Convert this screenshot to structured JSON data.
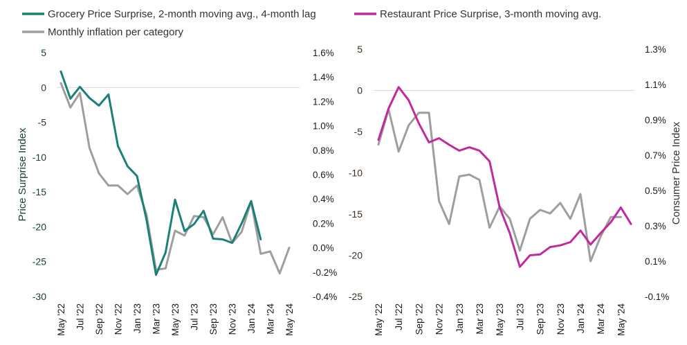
{
  "colors": {
    "grocery": "#1a8078",
    "restaurant": "#c02a9e",
    "inflation": "#9e9e9e",
    "left_axis_labels": "#17403c",
    "right_axis_labels": "#1a1a1a",
    "right_chart_left_axis_labels": "#3d2f1f",
    "zero_line": "#d9d9d9"
  },
  "legend": {
    "grocery": "Grocery Price Surprise, 2-month moving avg., 4-month lag",
    "inflation": "Monthly inflation per category",
    "restaurant": "Restaurant Price Surprise, 3-month moving avg."
  },
  "chart_data": [
    {
      "type": "line",
      "ylabel": "Price Surprise Index",
      "y2label": "",
      "ylim": [
        -30,
        5
      ],
      "y_ticks": [
        "5",
        "0",
        "-5",
        "-10",
        "-15",
        "-20",
        "-25",
        "-30"
      ],
      "y2lim": [
        -0.4,
        1.6
      ],
      "y2_ticks": [
        "1.6%",
        "1.4%",
        "1.2%",
        "1.0%",
        "0.8%",
        "0.6%",
        "0.4%",
        "0.2%",
        "0.0%",
        "-0.2%",
        "-0.4%"
      ],
      "x": [
        "May '22",
        "Jun '22",
        "Jul '22",
        "Aug '22",
        "Sep '22",
        "Oct '22",
        "Nov '22",
        "Dec '22",
        "Jan '23",
        "Feb '23",
        "Mar '23",
        "Apr '23",
        "May '23",
        "Jun '23",
        "Jul '23",
        "Aug '23",
        "Sep '23",
        "Oct '23",
        "Nov '23",
        "Dec '23",
        "Jan '24",
        "Feb '24",
        "Mar '24",
        "Apr '24",
        "May '24"
      ],
      "x_tick_labels": [
        "May '22",
        "Jul '22",
        "Sep '22",
        "Nov '22",
        "Jan '23",
        "Mar '23",
        "May '23",
        "Jul '23",
        "Sep '23",
        "Nov '23",
        "Jan '24",
        "Mar '24",
        "May '24"
      ],
      "series": [
        {
          "name": "Grocery Price Surprise, 2-month moving avg., 4-month lag",
          "axis": "left",
          "color_key": "grocery",
          "values": [
            2.3,
            -1.6,
            0.1,
            -1.5,
            -2.6,
            -1.0,
            -8.4,
            -11.3,
            -12.7,
            -19.0,
            -26.9,
            -23.7,
            -16.1,
            -20.6,
            -19.6,
            -17.7,
            -21.7,
            -21.8,
            -22.3,
            -19.5,
            -16.3,
            -21.8,
            null,
            null,
            null
          ]
        },
        {
          "name": "Monthly inflation per category",
          "axis": "right",
          "color_key": "inflation",
          "values": [
            1.35,
            1.15,
            1.27,
            0.82,
            0.61,
            0.51,
            0.51,
            0.44,
            0.51,
            0.27,
            -0.18,
            -0.17,
            0.14,
            0.1,
            0.26,
            0.25,
            0.11,
            0.25,
            0.04,
            0.13,
            0.38,
            -0.05,
            -0.03,
            -0.21,
            0.0
          ]
        }
      ]
    },
    {
      "type": "line",
      "ylabel": "",
      "y2label": "Consumer Price Index",
      "ylim": [
        -25,
        5
      ],
      "y_ticks": [
        "5",
        "0",
        "-5",
        "-10",
        "-15",
        "-20",
        "-25"
      ],
      "y2lim": [
        -0.1,
        1.3
      ],
      "y2_ticks": [
        "1.3%",
        "1.1%",
        "0.9%",
        "0.7%",
        "0.5%",
        "0.3%",
        "0.1%",
        "-0.1%"
      ],
      "x": [
        "May '22",
        "Jun '22",
        "Jul '22",
        "Aug '22",
        "Sep '22",
        "Oct '22",
        "Nov '22",
        "Dec '22",
        "Jan '23",
        "Feb '23",
        "Mar '23",
        "Apr '23",
        "May '23",
        "Jun '23",
        "Jul '23",
        "Aug '23",
        "Sep '23",
        "Oct '23",
        "Nov '23",
        "Dec '23",
        "Jan '24",
        "Feb '24",
        "Mar '24",
        "Apr '24",
        "May '24",
        "Jun '24"
      ],
      "x_tick_labels": [
        "May '22",
        "Jul '22",
        "Sep '22",
        "Nov '22",
        "Jan '23",
        "Mar '23",
        "May '23",
        "Jul '23",
        "Sep '23",
        "Nov '23",
        "Jan '24",
        "Mar '24",
        "May '24"
      ],
      "series": [
        {
          "name": "Restaurant Price Surprise, 3-month moving avg.",
          "axis": "left",
          "color_key": "restaurant",
          "values": [
            -6.0,
            -2.2,
            0.4,
            -1.2,
            -4.0,
            -6.3,
            -5.8,
            -6.6,
            -7.3,
            -6.9,
            -7.3,
            -8.6,
            -14.2,
            -17.3,
            -21.4,
            -20.0,
            -19.9,
            -19.0,
            -18.8,
            -18.4,
            -17.0,
            -18.7,
            -17.3,
            -16.0,
            -14.2,
            -16.2
          ]
        },
        {
          "name": "Monthly inflation per category",
          "axis": "right",
          "color_key": "inflation",
          "values": [
            0.76,
            0.96,
            0.72,
            0.87,
            0.94,
            0.94,
            0.44,
            0.31,
            0.58,
            0.59,
            0.56,
            0.29,
            0.41,
            0.34,
            0.16,
            0.34,
            0.39,
            0.37,
            0.43,
            0.34,
            0.48,
            0.1,
            0.24,
            0.35,
            0.35,
            null
          ]
        }
      ]
    }
  ]
}
